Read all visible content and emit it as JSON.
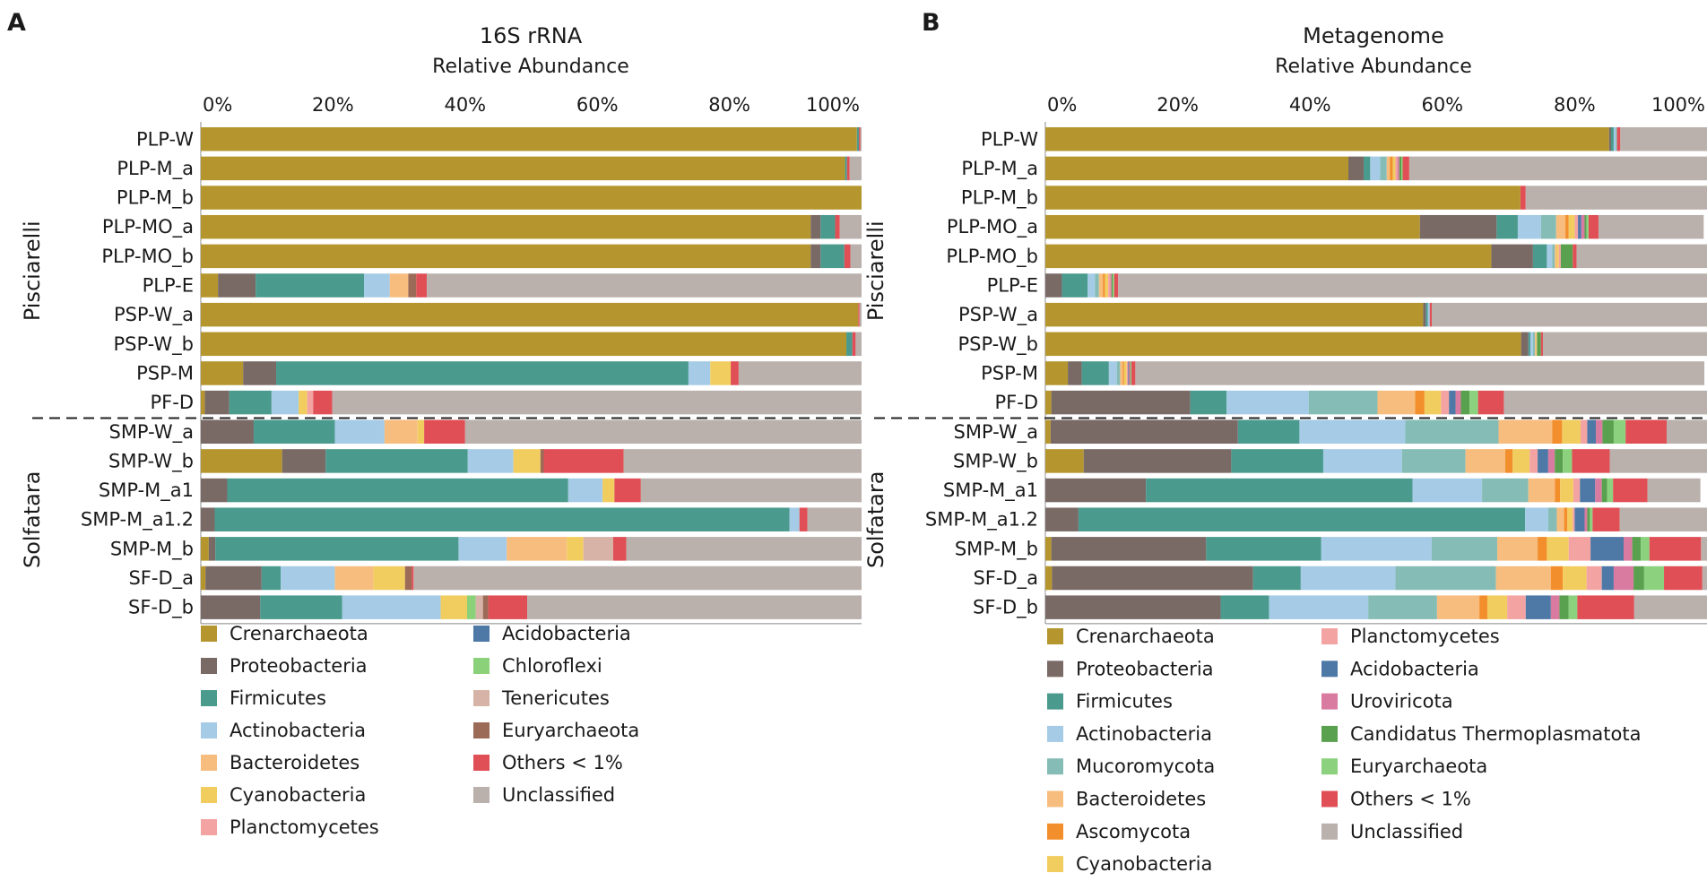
{
  "colors": {
    "Crenarchaeota": "#b5962e",
    "Proteobacteria": "#7a6a66",
    "Firmicutes": "#4a9a8e",
    "Actinobacteria": "#a5cbe6",
    "Bacteroidetes": "#f7bd7e",
    "Cyanobacteria": "#f1cd60",
    "Planctomycetes": "#f4a3a3",
    "Acidobacteria": "#4e78a6",
    "Chloroflexi": "#8ad17a",
    "Tenericutes": "#d6b3a6",
    "Euryarchaeota_A": "#9c6b57",
    "Others": "#e04f55",
    "Unclassified": "#bab0ac",
    "Mucoromycota": "#86bcb6",
    "Ascomycota": "#f28e2b",
    "Uroviricota": "#d97aa0",
    "Thermoplasmatota": "#59a14f",
    "Euryarchaeota_B": "#8cd17d"
  },
  "chart_data": [
    {
      "type": "bar",
      "panel_letter": "A",
      "title": "16S rRNA",
      "xlabel": "Relative Abundance",
      "ticks": [
        "0%",
        "20%",
        "40%",
        "60%",
        "80%",
        "100%"
      ],
      "xlim": [
        0,
        100
      ],
      "groups": [
        {
          "name": "Pisciarelli",
          "start": 0,
          "count": 10
        },
        {
          "name": "Solfatara",
          "start": 10,
          "count": 7
        }
      ],
      "categories": [
        "PLP-W",
        "PLP-M_a",
        "PLP-M_b",
        "PLP-MO_a",
        "PLP-MO_b",
        "PLP-E",
        "PSP-W_a",
        "PSP-W_b",
        "PSP-M",
        "PF-D",
        "SMP-W_a",
        "SMP-W_b",
        "SMP-M_a1",
        "SMP-M_a1.2",
        "SMP-M_b",
        "SF-D_a",
        "SF-D_b"
      ],
      "series": [
        {
          "name": "Crenarchaeota",
          "color_key": "Crenarchaeota",
          "values": [
            99.3,
            97.5,
            100,
            92.3,
            92.3,
            2.6,
            99.5,
            97.7,
            6.4,
            0.6,
            0.0,
            12.3,
            0.0,
            0.0,
            1.2,
            0.7,
            0.0
          ]
        },
        {
          "name": "Proteobacteria",
          "color_key": "Proteobacteria",
          "values": [
            0,
            0,
            0,
            1.5,
            1.5,
            5.7,
            0,
            0,
            5.0,
            3.7,
            8.0,
            6.6,
            4.0,
            2.1,
            1.0,
            8.5,
            9.0
          ]
        },
        {
          "name": "Firmicutes",
          "color_key": "Firmicutes",
          "values": [
            0.3,
            0.3,
            0,
            2.2,
            3.6,
            16.4,
            0,
            0.9,
            62.4,
            6.4,
            12.3,
            21.5,
            51.6,
            87.0,
            36.8,
            2.9,
            12.4
          ]
        },
        {
          "name": "Actinobacteria",
          "color_key": "Actinobacteria",
          "values": [
            0,
            0,
            0,
            0,
            0,
            3.9,
            0,
            0,
            3.3,
            4.1,
            7.5,
            6.9,
            5.2,
            1.5,
            7.3,
            8.2,
            14.9
          ]
        },
        {
          "name": "Bacteroidetes",
          "color_key": "Bacteroidetes",
          "values": [
            0,
            0,
            0,
            0,
            0,
            2.8,
            0,
            0,
            0,
            0,
            5.0,
            0,
            0,
            0,
            9.1,
            5.8,
            0
          ]
        },
        {
          "name": "Cyanobacteria",
          "color_key": "Cyanobacteria",
          "values": [
            0,
            0,
            0,
            0,
            0,
            0,
            0,
            0,
            3.1,
            1.3,
            1.0,
            4.1,
            1.8,
            0,
            2.5,
            4.8,
            4.0
          ]
        },
        {
          "name": "Planctomycetes",
          "color_key": "Planctomycetes",
          "values": [
            0,
            0,
            0,
            0,
            0,
            0,
            0,
            0,
            0,
            0.9,
            0,
            0,
            0,
            0,
            0,
            0,
            0
          ]
        },
        {
          "name": "Acidobacteria",
          "color_key": "Acidobacteria",
          "values": [
            0,
            0,
            0,
            0,
            0,
            0,
            0,
            0,
            0,
            0,
            0,
            0,
            0,
            0,
            0,
            0,
            0
          ]
        },
        {
          "name": "Chloroflexi",
          "color_key": "Chloroflexi",
          "values": [
            0,
            0,
            0,
            0,
            0,
            0,
            0,
            0,
            0,
            0,
            0,
            0,
            0,
            0,
            0,
            0,
            1.3
          ]
        },
        {
          "name": "Tenericutes",
          "color_key": "Tenericutes",
          "values": [
            0,
            0,
            0,
            0,
            0,
            0,
            0,
            0,
            0,
            0,
            0,
            0,
            0,
            0,
            4.5,
            0,
            1.1
          ]
        },
        {
          "name": "Euryarchaeota",
          "color_key": "Euryarchaeota_A",
          "values": [
            0,
            0,
            0,
            0,
            0,
            1.2,
            0,
            0,
            0,
            0,
            0,
            0.5,
            0,
            0,
            0,
            1.0,
            0.8
          ]
        },
        {
          "name": "Others < 1%",
          "color_key": "Others",
          "values": [
            0.2,
            0.4,
            0,
            0.7,
            0.9,
            1.6,
            0.2,
            0.5,
            1.2,
            2.9,
            6.2,
            12.1,
            4.0,
            1.2,
            2.0,
            0.3,
            5.9
          ]
        },
        {
          "name": "Unclassified",
          "color_key": "Unclassified",
          "values": [
            0.2,
            1.8,
            0,
            3.3,
            1.7,
            65.8,
            0.3,
            0.9,
            18.6,
            80.1,
            60.0,
            36.0,
            33.4,
            8.2,
            35.6,
            67.8,
            50.6
          ]
        }
      ],
      "legend": {
        "col1": [
          "Crenarchaeota",
          "Proteobacteria",
          "Firmicutes",
          "Actinobacteria",
          "Bacteroidetes",
          "Cyanobacteria",
          "Planctomycetes"
        ],
        "col1_keys": [
          "Crenarchaeota",
          "Proteobacteria",
          "Firmicutes",
          "Actinobacteria",
          "Bacteroidetes",
          "Cyanobacteria",
          "Planctomycetes"
        ],
        "col2": [
          "Acidobacteria",
          "Chloroflexi",
          "Tenericutes",
          "Euryarchaeota",
          "Others < 1%",
          "Unclassified"
        ],
        "col2_keys": [
          "Acidobacteria",
          "Chloroflexi",
          "Tenericutes",
          "Euryarchaeota_A",
          "Others",
          "Unclassified"
        ]
      }
    },
    {
      "type": "bar",
      "panel_letter": "B",
      "title": "Metagenome",
      "xlabel": "Relative Abundance",
      "ticks": [
        "0%",
        "20%",
        "40%",
        "60%",
        "80%",
        "100%"
      ],
      "xlim": [
        0,
        100
      ],
      "groups": [
        {
          "name": "Pisciarelli",
          "start": 0,
          "count": 10
        },
        {
          "name": "Solfatara",
          "start": 10,
          "count": 7
        }
      ],
      "categories": [
        "PLP-W",
        "PLP-M_a",
        "PLP-M_b",
        "PLP-MO_a",
        "PLP-MO_b",
        "PLP-E",
        "PSP-W_a",
        "PSP-W_b",
        "PSP-M",
        "PF-D",
        "SMP-W_a",
        "SMP-W_b",
        "SMP-M_a1",
        "SMP-M_a1.2",
        "SMP-M_b",
        "SF-D_a",
        "SF-D_b"
      ],
      "series": [
        {
          "name": "Crenarchaeota",
          "color_key": "Crenarchaeota",
          "values": [
            85.2,
            45.8,
            71.8,
            56.6,
            67.4,
            0.0,
            57.1,
            71.9,
            3.4,
            0.9,
            0.8,
            5.8,
            0.0,
            0.0,
            0.9,
            1.0,
            0.0
          ]
        },
        {
          "name": "Proteobacteria",
          "color_key": "Proteobacteria",
          "values": [
            0.3,
            2.3,
            0,
            11.6,
            6.3,
            2.5,
            0.4,
            1.1,
            2.1,
            21.0,
            28.3,
            22.3,
            15.2,
            5.0,
            23.4,
            30.4,
            26.5
          ]
        },
        {
          "name": "Firmicutes",
          "color_key": "Firmicutes",
          "values": [
            0.4,
            1.0,
            0,
            3.2,
            2.1,
            3.9,
            0.3,
            0.3,
            4.1,
            5.5,
            9.3,
            13.9,
            40.3,
            67.5,
            17.4,
            7.2,
            7.3
          ]
        },
        {
          "name": "Actinobacteria",
          "color_key": "Actinobacteria",
          "values": [
            0.3,
            1.5,
            0,
            3.5,
            0.8,
            1.1,
            0.3,
            0.4,
            1.2,
            12.4,
            16.0,
            11.9,
            10.5,
            3.5,
            16.7,
            14.3,
            15.0
          ]
        },
        {
          "name": "Mucoromycota",
          "color_key": "Mucoromycota",
          "values": [
            0.2,
            1.0,
            0,
            2.3,
            0.4,
            0.6,
            0,
            0.3,
            0.5,
            10.4,
            14.1,
            9.6,
            7.0,
            1.3,
            9.9,
            15.2,
            10.4
          ]
        },
        {
          "name": "Bacteroidetes",
          "color_key": "Bacteroidetes",
          "values": [
            0,
            0.5,
            0,
            1.4,
            0.3,
            0.6,
            0,
            0.2,
            0.4,
            5.7,
            8.1,
            6.0,
            4.0,
            1.1,
            6.1,
            8.3,
            6.4
          ]
        },
        {
          "name": "Ascomycota",
          "color_key": "Ascomycota",
          "values": [
            0,
            0.4,
            0,
            0.5,
            0,
            0.3,
            0,
            0,
            0.2,
            1.4,
            1.5,
            1.1,
            0.8,
            0.5,
            1.4,
            1.8,
            1.2
          ]
        },
        {
          "name": "Cyanobacteria",
          "color_key": "Cyanobacteria",
          "values": [
            0,
            0.4,
            0,
            0.9,
            0.3,
            0.5,
            0,
            0.1,
            0.4,
            2.5,
            2.8,
            2.6,
            2.0,
            0.8,
            3.3,
            3.6,
            3.0
          ]
        },
        {
          "name": "Planctomycetes",
          "color_key": "Planctomycetes",
          "values": [
            0,
            0.3,
            0,
            0.5,
            0.3,
            0.3,
            0,
            0,
            0.2,
            1.2,
            1.0,
            1.2,
            1.0,
            0.3,
            3.3,
            2.3,
            2.8
          ]
        },
        {
          "name": "Acidobacteria",
          "color_key": "Acidobacteria",
          "values": [
            0,
            0,
            0,
            0.5,
            0,
            0,
            0,
            0,
            0.1,
            1.0,
            1.3,
            1.6,
            2.3,
            1.5,
            5.0,
            1.8,
            3.8
          ]
        },
        {
          "name": "Uroviricota",
          "color_key": "Uroviricota",
          "values": [
            0,
            0.3,
            0,
            0.5,
            0,
            0.2,
            0,
            0,
            0.2,
            0.8,
            1.0,
            1.0,
            1.0,
            0.4,
            1.3,
            3.0,
            1.3
          ]
        },
        {
          "name": "Candidatus Thermoplasmatota",
          "color_key": "Thermoplasmatota",
          "values": [
            0,
            0.3,
            0,
            0.3,
            1.8,
            0.2,
            0,
            0.6,
            0.1,
            1.3,
            1.7,
            1.2,
            0.8,
            0.4,
            1.3,
            1.6,
            1.4
          ]
        },
        {
          "name": "Euryarchaeota",
          "color_key": "Euryarchaeota_B",
          "values": [
            0,
            0.2,
            0,
            0.3,
            0,
            0.2,
            0,
            0,
            0.1,
            1.3,
            1.8,
            1.4,
            0.9,
            0.4,
            1.3,
            3.0,
            1.3
          ]
        },
        {
          "name": "Others < 1%",
          "color_key": "Others",
          "values": [
            0.5,
            1.0,
            0.8,
            1.5,
            0.6,
            0.6,
            0.3,
            0.3,
            0.6,
            3.9,
            6.2,
            5.7,
            5.2,
            4.1,
            7.8,
            5.8,
            8.6
          ]
        },
        {
          "name": "Unclassified",
          "color_key": "Unclassified",
          "values": [
            13.1,
            45.2,
            27.4,
            15.9,
            19.7,
            89.0,
            41.6,
            24.9,
            86.0,
            31.7,
            6.1,
            15.6,
            8.0,
            13.3,
            1.9,
            0.7,
            11.0
          ]
        }
      ],
      "legend": {
        "col1": [
          "Crenarchaeota",
          "Proteobacteria",
          "Firmicutes",
          "Actinobacteria",
          "Mucoromycota",
          "Bacteroidetes",
          "Ascomycota",
          "Cyanobacteria"
        ],
        "col1_keys": [
          "Crenarchaeota",
          "Proteobacteria",
          "Firmicutes",
          "Actinobacteria",
          "Mucoromycota",
          "Bacteroidetes",
          "Ascomycota",
          "Cyanobacteria"
        ],
        "col2": [
          "Planctomycetes",
          "Acidobacteria",
          "Uroviricota",
          "Candidatus Thermoplasmatota",
          "Euryarchaeota",
          "Others < 1%",
          "Unclassified"
        ],
        "col2_keys": [
          "Planctomycetes",
          "Acidobacteria",
          "Uroviricota",
          "Thermoplasmatota",
          "Euryarchaeota_B",
          "Others",
          "Unclassified"
        ]
      }
    }
  ]
}
